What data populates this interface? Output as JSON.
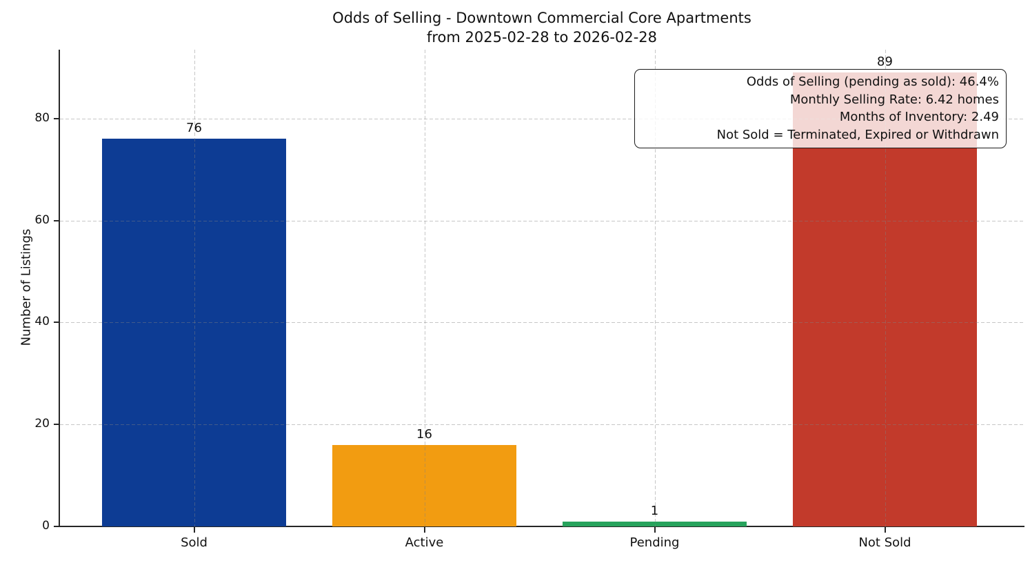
{
  "title": {
    "line1": "Odds of Selling - Downtown Commercial Core Apartments",
    "line2": "from 2025-02-28 to 2026-02-28"
  },
  "chart_data": {
    "type": "bar",
    "title": "Odds of Selling - Downtown Commercial Core Apartments\nfrom 2025-02-28 to 2026-02-28",
    "categories": [
      "Sold",
      "Active",
      "Pending",
      "Not Sold"
    ],
    "values": [
      76,
      16,
      1,
      89
    ],
    "bar_colors": [
      "#0d3c94",
      "#f29c11",
      "#27a35c",
      "#c23a2b"
    ],
    "xlabel": "",
    "ylabel": "Number of Listings",
    "ylim": [
      0,
      93.5
    ],
    "yticks": [
      0,
      20,
      40,
      60,
      80
    ],
    "grid": "dashed, both axes, drawn over bars",
    "legend": "none",
    "annotation": {
      "position": "top-right",
      "lines": [
        "Odds of Selling (pending as sold): 46.4%",
        "Monthly Selling Rate: 6.42 homes",
        "Months of Inventory: 2.49",
        "Not Sold = Terminated, Expired or Withdrawn"
      ]
    }
  },
  "annotation_box": {
    "line1": "Odds of Selling (pending as sold): 46.4%",
    "line2": "Monthly Selling Rate: 6.42 homes",
    "line3": "Months of Inventory: 2.49",
    "line4": "Not Sold = Terminated, Expired or Withdrawn"
  }
}
